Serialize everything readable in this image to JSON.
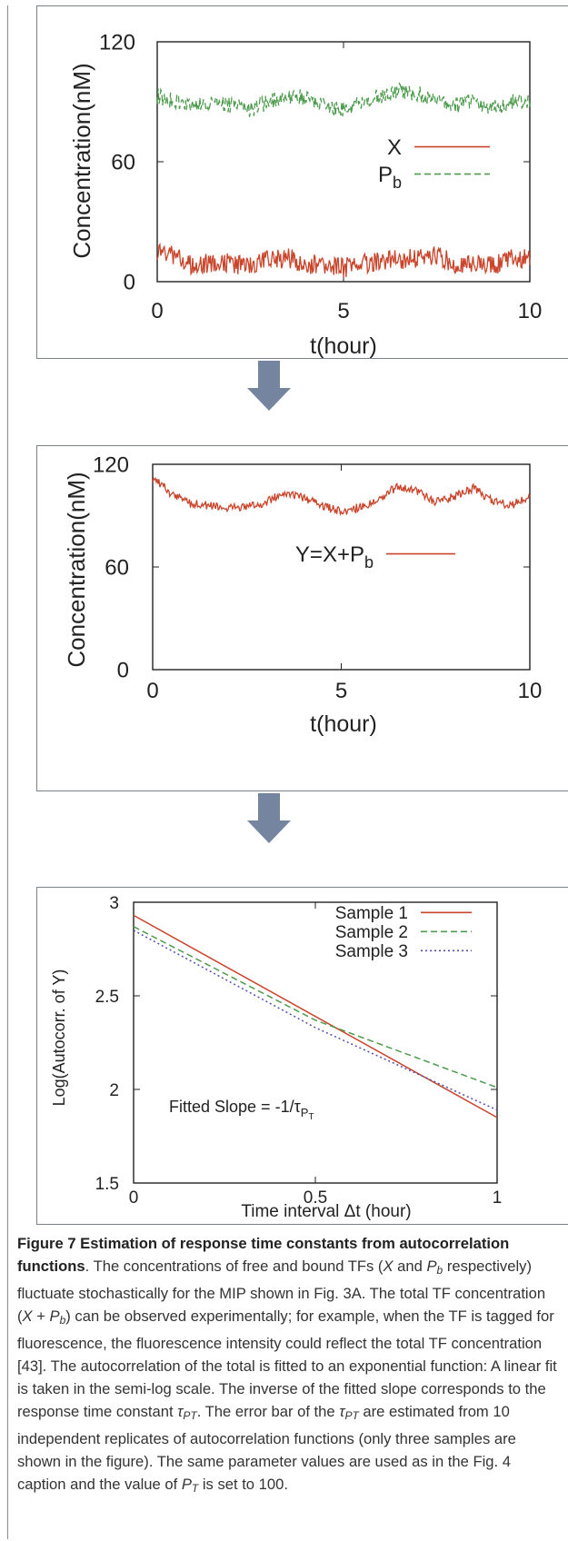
{
  "chart_data": [
    {
      "type": "line",
      "xlabel": "t(hour)",
      "ylabel": "Concentration(nM)",
      "xlim": [
        0,
        10
      ],
      "ylim": [
        0,
        120
      ],
      "xticks": [
        0,
        5,
        10
      ],
      "yticks": [
        0,
        60,
        120
      ],
      "legend_placement": "right",
      "grid": false,
      "series": [
        {
          "name": "X",
          "color": "#c9452c",
          "style": "solid",
          "mean": 10,
          "amp": 5,
          "x": [
            0,
            0.5,
            1,
            1.5,
            2,
            2.5,
            3,
            3.5,
            4,
            4.5,
            5,
            5.5,
            6,
            6.5,
            7,
            7.5,
            8,
            8.5,
            9,
            9.5,
            10
          ],
          "values": [
            16,
            12,
            8,
            10,
            9,
            8,
            11,
            12,
            9,
            8,
            7,
            9,
            10,
            11,
            12,
            13,
            9,
            10,
            8,
            12,
            11
          ]
        },
        {
          "name": "Pb",
          "color": "#4d9b4d",
          "style": "dashed",
          "mean": 90,
          "amp": 4,
          "x": [
            0,
            0.5,
            1,
            1.5,
            2,
            2.5,
            3,
            3.5,
            4,
            4.5,
            5,
            5.5,
            6,
            6.5,
            7,
            7.5,
            8,
            8.5,
            9,
            9.5,
            10
          ],
          "values": [
            93,
            90,
            88,
            89,
            88,
            86,
            90,
            93,
            92,
            88,
            86,
            89,
            93,
            96,
            94,
            91,
            88,
            90,
            87,
            90,
            90
          ]
        }
      ]
    },
    {
      "type": "line",
      "xlabel": "t(hour)",
      "ylabel": "Concentration(nM)",
      "xlim": [
        0,
        10
      ],
      "ylim": [
        0,
        120
      ],
      "xticks": [
        0,
        5,
        10
      ],
      "yticks": [
        0,
        60,
        120
      ],
      "legend_placement": "right",
      "grid": false,
      "series": [
        {
          "name": "Y=X+Pb",
          "color": "#c9452c",
          "style": "solid",
          "mean": 100,
          "amp": 2.5,
          "x": [
            0,
            0.25,
            0.5,
            1,
            1.5,
            2,
            2.5,
            3,
            3.5,
            4,
            4.5,
            5,
            5.5,
            6,
            6.5,
            7,
            7.5,
            8,
            8.5,
            9,
            9.5,
            10
          ],
          "values": [
            112,
            108,
            102,
            97,
            96,
            94,
            95,
            98,
            104,
            100,
            96,
            92,
            95,
            100,
            107,
            104,
            98,
            101,
            106,
            99,
            96,
            101
          ]
        }
      ]
    },
    {
      "type": "line",
      "xlabel": "Time interval Δt (hour)",
      "ylabel": "Log(Autocorr. of Y)",
      "xlim": [
        0,
        1
      ],
      "ylim": [
        1.5,
        3
      ],
      "xticks": [
        0,
        0.5,
        1
      ],
      "yticks": [
        1.5,
        2,
        2.5,
        3
      ],
      "legend_placement": "top-right",
      "grid": false,
      "annotation": "Fitted Slope = -1/τ",
      "series": [
        {
          "name": "Sample 1",
          "color": "#c9452c",
          "style": "solid",
          "x": [
            0,
            1
          ],
          "values": [
            2.93,
            1.85
          ]
        },
        {
          "name": "Sample 2",
          "color": "#4d9b4d",
          "style": "dashed",
          "x": [
            0,
            0.5,
            1
          ],
          "values": [
            2.87,
            2.37,
            2.01
          ]
        },
        {
          "name": "Sample 3",
          "color": "#4f4fb0",
          "style": "dotted",
          "x": [
            0,
            0.5,
            1
          ],
          "values": [
            2.85,
            2.33,
            1.89
          ]
        }
      ]
    }
  ],
  "arrow_color": "#7585a0",
  "caption": {
    "title": "Figure 7 Estimation of response time constants from autocorrelation functions",
    "t1": ". The concentrations of free and bound TFs (",
    "x": "X",
    "and": " and ",
    "pb_p": "P",
    "pb_b": "b",
    "t2": " respectively) fluctuate stochastically for the MIP shown in Fig. 3A. The total TF concentration (",
    "x2": "X",
    "plus": " + ",
    "pb2_p": "P",
    "pb2_b": "b",
    "t3": ") can be observed experimentally; for example, when the TF is tagged for fluorescence, the fluorescence intensity could reflect the total TF concentration [43]. The autocorrelation of the total is fitted to an exponential function: A linear fit is taken in the semi-log scale. The inverse of the fitted slope corresponds to the response time constant ",
    "tau": "τ",
    "tau_sub": "PT",
    "t4": ". The error bar of the ",
    "t5": " are estimated from 10 independent replicates of autocorrelation functions (only three samples are shown in the figure). The same parameter values are used as in the Fig. 4 caption and the value of ",
    "pt_p": "P",
    "pt_t": "T",
    "t6": " is set to 100."
  }
}
